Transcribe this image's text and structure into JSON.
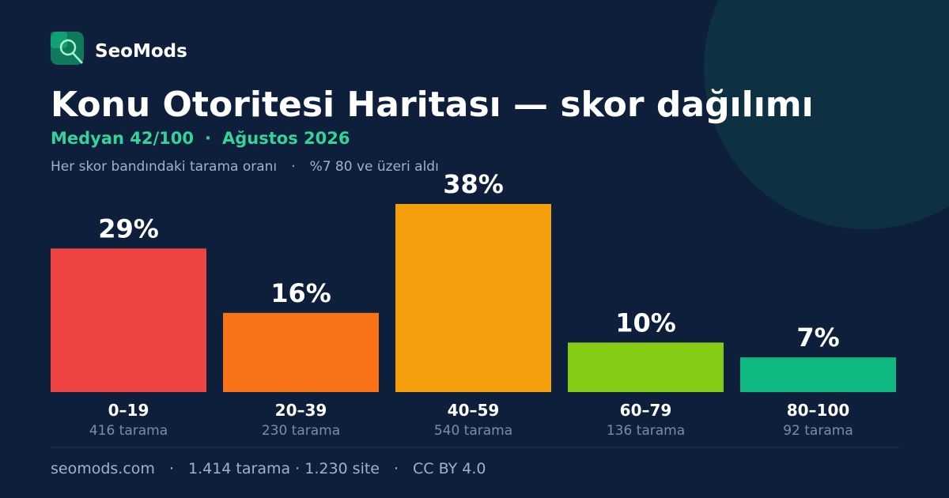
{
  "brand": "SeoMods",
  "chart_data": {
    "type": "bar",
    "title": "Konu Otoritesi Haritası — skor dağılımı",
    "subtitle": [
      "Medyan 42/100",
      "Ağustos 2026"
    ],
    "description": [
      "Her skor bandındaki tarama oranı",
      "%7 80 ve üzeri aldı"
    ],
    "categories": [
      "0–19",
      "20–39",
      "40–59",
      "60–79",
      "80–100"
    ],
    "category_notes": [
      "416 tarama",
      "230 tarama",
      "540 tarama",
      "136 tarama",
      "92 tarama"
    ],
    "values": [
      29,
      16,
      38,
      10,
      7
    ],
    "value_labels": [
      "29%",
      "16%",
      "38%",
      "10%",
      "7%"
    ],
    "colors": [
      "#ef4444",
      "#f97316",
      "#f59e0b",
      "#84cc16",
      "#10b981"
    ]
  },
  "footer": [
    "seomods.com",
    "1.414 tarama · 1.230 site",
    "CC BY 4.0"
  ]
}
